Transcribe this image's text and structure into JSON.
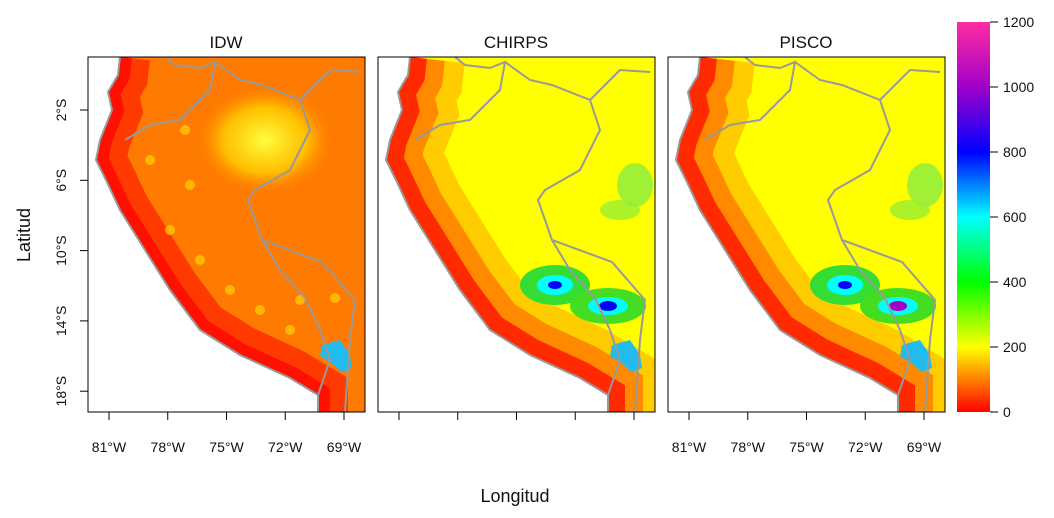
{
  "panels": [
    {
      "title": "IDW",
      "show_x_labels": true,
      "style": "idw"
    },
    {
      "title": "CHIRPS",
      "show_x_labels": false,
      "style": "chirps"
    },
    {
      "title": "PISCO",
      "show_x_labels": true,
      "style": "pisco"
    }
  ],
  "x_axis": {
    "label": "Longitud",
    "ticks": [
      "81°W",
      "78°W",
      "75°W",
      "72°W",
      "69°W"
    ]
  },
  "y_axis": {
    "label": "Latitud",
    "ticks": [
      "2°S",
      "6°S",
      "10°S",
      "14°S",
      "18°S"
    ]
  },
  "colorbar": {
    "lim": [
      0,
      1200
    ],
    "ticks": [
      0,
      200,
      400,
      600,
      800,
      1000,
      1200
    ],
    "colors": [
      "#ff0000",
      "#ffff00",
      "#00ff00",
      "#00ffff",
      "#0000ff",
      "#a000c8",
      "#ff2da0"
    ]
  }
}
